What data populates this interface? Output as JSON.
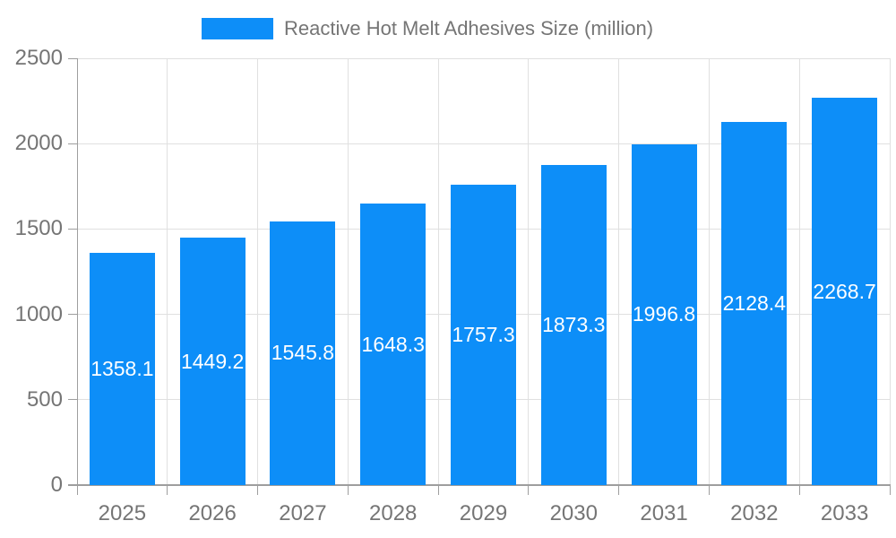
{
  "legend": {
    "label": "Reactive Hot Melt Adhesives Size (million)"
  },
  "colors": {
    "accent": "#0d8ef8",
    "grid": "#e0e0e0",
    "axis": "#9e9e9e",
    "text": "#757575",
    "value_text": "#ffffff"
  },
  "chart_data": {
    "type": "bar",
    "title": "Reactive Hot Melt Adhesives Size (million)",
    "categories": [
      "2025",
      "2026",
      "2027",
      "2028",
      "2029",
      "2030",
      "2031",
      "2032",
      "2033"
    ],
    "values": [
      1358.1,
      1449.2,
      1545.8,
      1648.3,
      1757.3,
      1873.3,
      1996.8,
      2128.4,
      2268.7
    ],
    "series_name": "Reactive Hot Melt Adhesives Size (million)",
    "xlabel": "",
    "ylabel": "",
    "ylim": [
      0,
      2500
    ],
    "yticks": [
      0,
      500,
      1000,
      1500,
      2000,
      2500
    ],
    "grid": true,
    "legend_position": "top",
    "value_labels": "inside-center"
  }
}
